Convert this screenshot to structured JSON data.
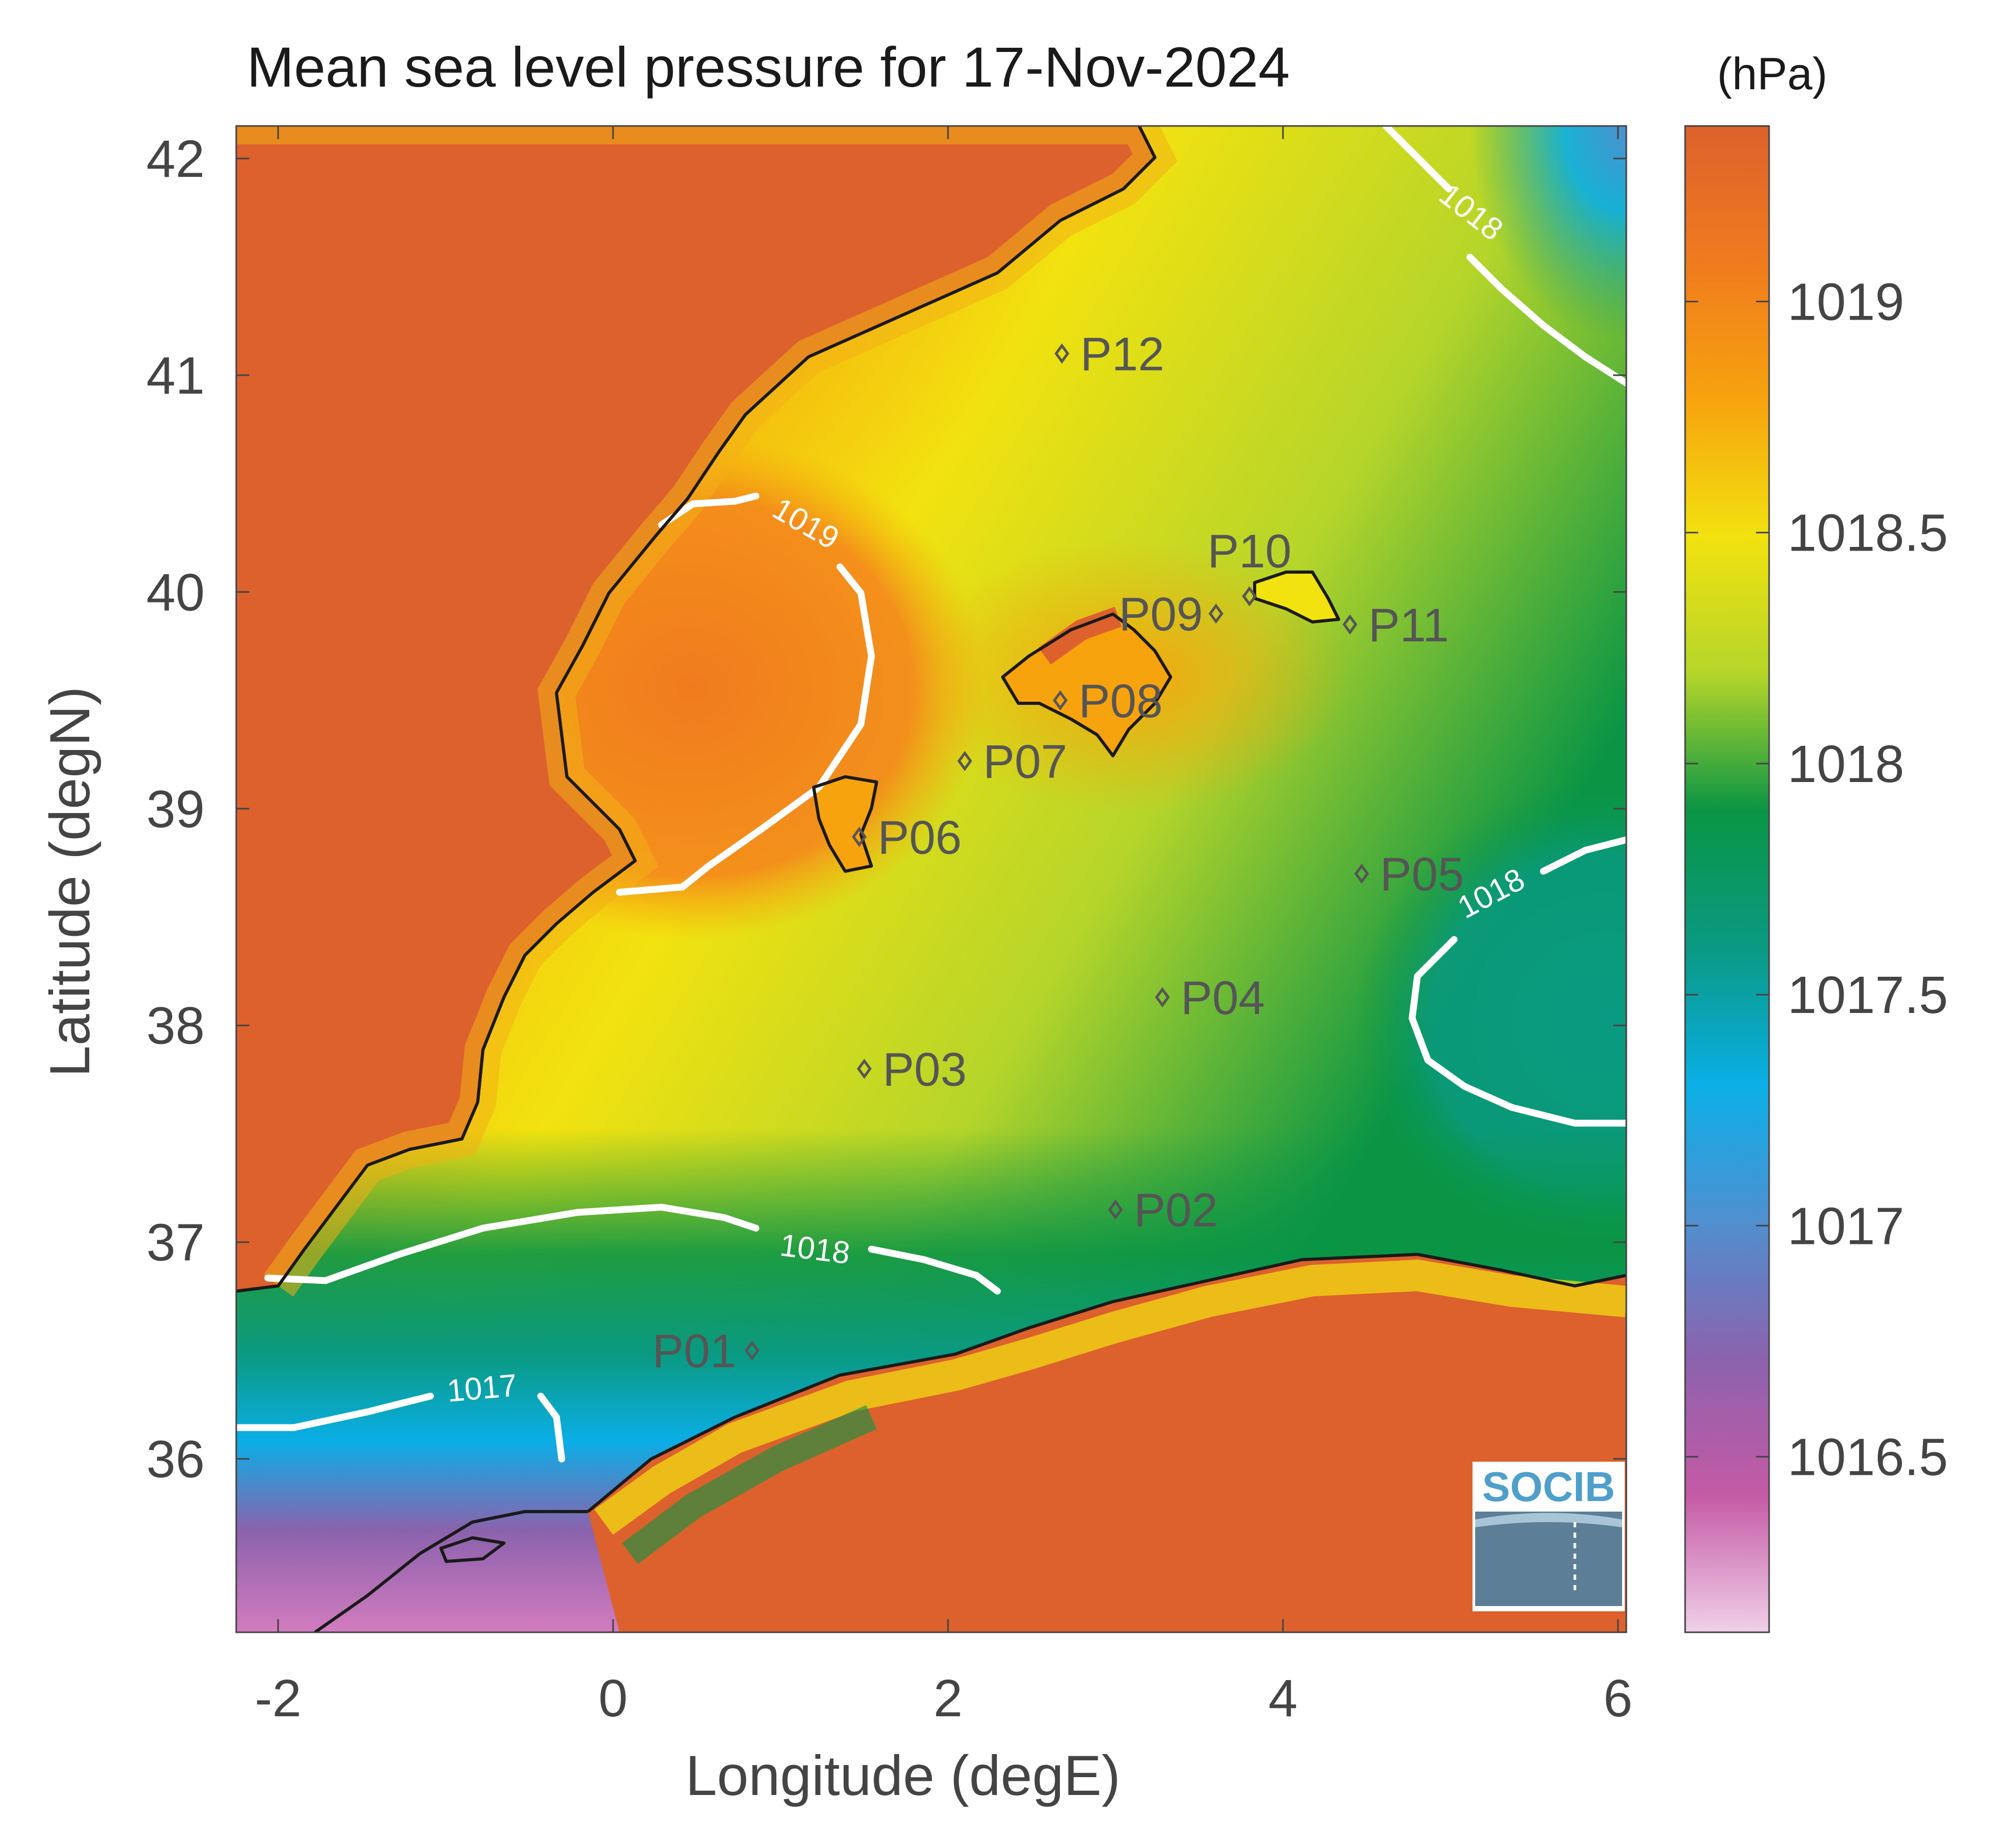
{
  "title": "Mean sea level pressure for 17-Nov-2024",
  "units": "(hPa)",
  "x_axis": {
    "label": "Longitude (degE)",
    "ticks": [
      -2,
      0,
      2,
      4,
      6
    ],
    "tick_labels": [
      "-2",
      "0",
      "2",
      "4",
      "6"
    ],
    "range": [
      -2.25,
      6.05
    ]
  },
  "y_axis": {
    "label": "Latitude (degN)",
    "ticks": [
      36,
      37,
      38,
      39,
      40,
      41,
      42
    ],
    "tick_labels": [
      "36",
      "37",
      "38",
      "39",
      "40",
      "41",
      "42"
    ],
    "range": [
      35.2,
      42.15
    ]
  },
  "colorbar": {
    "range": [
      1016.12,
      1019.38
    ],
    "ticks": [
      1016.5,
      1017,
      1017.5,
      1018,
      1018.5,
      1019
    ],
    "tick_labels": [
      "1016.5",
      "1017",
      "1017.5",
      "1018",
      "1018.5",
      "1019"
    ],
    "colors": [
      "#f0d0e8",
      "#c55aa5",
      "#8c62ad",
      "#4f8fcf",
      "#0aaee6",
      "#0a9a82",
      "#0a9545",
      "#b5d52a",
      "#f2e20f",
      "#f7a30e",
      "#f07b1e",
      "#dc612c"
    ]
  },
  "land_color": "#dc612c",
  "contour_labels": [
    "1019",
    "1018",
    "1018",
    "1018",
    "1017"
  ],
  "stations": [
    {
      "name": "P01",
      "lon": 0.83,
      "lat": 36.5
    },
    {
      "name": "P02",
      "lon": 3.0,
      "lat": 37.15
    },
    {
      "name": "P03",
      "lon": 1.5,
      "lat": 37.8
    },
    {
      "name": "P04",
      "lon": 3.28,
      "lat": 38.13
    },
    {
      "name": "P05",
      "lon": 4.47,
      "lat": 38.7
    },
    {
      "name": "P06",
      "lon": 1.47,
      "lat": 38.87
    },
    {
      "name": "P07",
      "lon": 2.1,
      "lat": 39.22
    },
    {
      "name": "P08",
      "lon": 2.67,
      "lat": 39.5
    },
    {
      "name": "P09",
      "lon": 3.6,
      "lat": 39.9
    },
    {
      "name": "P10",
      "lon": 3.8,
      "lat": 39.98
    },
    {
      "name": "P11",
      "lon": 4.4,
      "lat": 39.85
    },
    {
      "name": "P12",
      "lon": 2.68,
      "lat": 41.1
    }
  ],
  "logo": {
    "text": "SOCIB"
  }
}
